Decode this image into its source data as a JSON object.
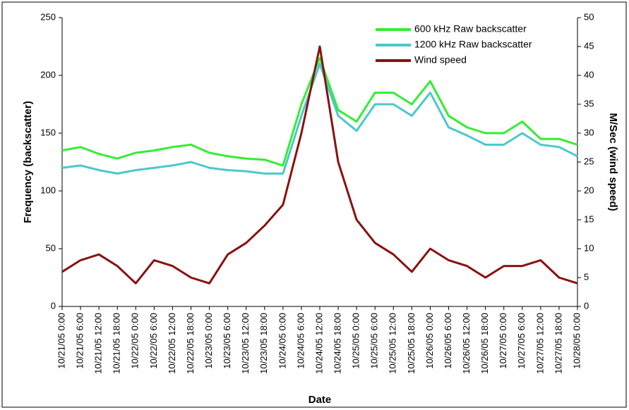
{
  "chart_data": {
    "type": "line",
    "xlabel": "Date",
    "ylabel": "Frequency (backscatter)",
    "y2label": "M/Sec (wind speed)",
    "categories": [
      "10/21/05 0:00",
      "10/21/05 6:00",
      "10/21/05 12:00",
      "10/21/05 18:00",
      "10/22/05 0:00",
      "10/22/05 6:00",
      "10/22/05 12:00",
      "10/22/05 18:00",
      "10/23/05 0:00",
      "10/23/05 6:00",
      "10/23/05 12:00",
      "10/23/05 18:00",
      "10/24/05 0:00",
      "10/24/05 6:00",
      "10/24/05 12:00",
      "10/24/05 18:00",
      "10/25/05 0:00",
      "10/25/05 6:00",
      "10/25/05 12:00",
      "10/25/05 18:00",
      "10/26/05 0:00",
      "10/26/05 6:00",
      "10/26/05 12:00",
      "10/26/05 18:00",
      "10/27/05 0:00",
      "10/27/05 6:00",
      "10/27/05 12:00",
      "10/27/05 18:00",
      "10/28/05 0:00"
    ],
    "series": [
      {
        "name": "600 kHz Raw backscatter",
        "color": "#33ee33",
        "values": [
          135,
          138,
          132,
          128,
          133,
          135,
          138,
          140,
          133,
          130,
          128,
          127,
          122,
          175,
          215,
          170,
          160,
          185,
          185,
          175,
          195,
          165,
          155,
          150,
          150,
          160,
          145,
          145,
          140
        ]
      },
      {
        "name": "1200 kHz Raw backscatter",
        "color": "#4cc8cc",
        "values": [
          120,
          122,
          118,
          115,
          118,
          120,
          122,
          125,
          120,
          118,
          117,
          115,
          115,
          165,
          210,
          165,
          152,
          175,
          175,
          165,
          185,
          155,
          148,
          140,
          140,
          150,
          140,
          138,
          130
        ]
      },
      {
        "name": "Wind speed",
        "color": "#8b1010",
        "axis": "y2",
        "values": [
          6,
          8,
          9,
          7,
          4,
          8,
          7,
          5,
          4,
          9,
          11,
          14,
          17.6,
          30,
          45,
          25,
          15,
          11,
          9,
          6,
          10,
          8,
          7,
          5,
          7,
          7,
          8,
          5,
          4
        ]
      }
    ],
    "ylim": [
      0,
      250
    ],
    "yticks": [
      0,
      50,
      100,
      150,
      200,
      250
    ],
    "y2lim": [
      0,
      50
    ],
    "y2ticks": [
      0,
      5,
      10,
      15,
      20,
      25,
      30,
      35,
      40,
      45,
      50
    ],
    "grid": false,
    "legend": "upper-right"
  }
}
